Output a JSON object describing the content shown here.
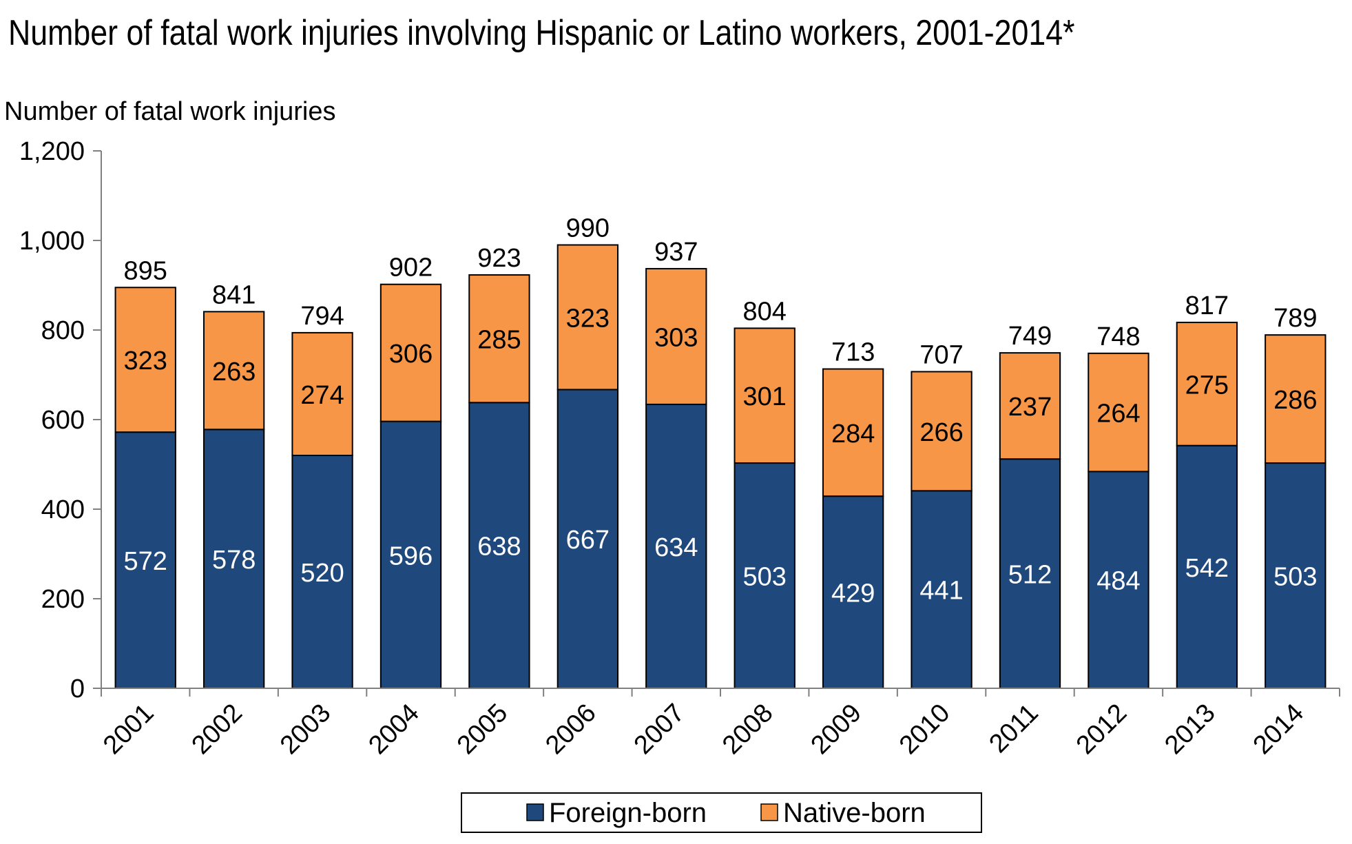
{
  "chart_data": {
    "type": "bar",
    "stacked": true,
    "title": "Number of fatal work injuries involving Hispanic or Latino workers, 2001-2014*",
    "ylabel": "Number of fatal work injuries",
    "xlabel": "",
    "ylim": [
      0,
      1200
    ],
    "yticks": [
      0,
      200,
      400,
      600,
      800,
      1000,
      1200
    ],
    "ytick_labels": [
      "0",
      "200",
      "400",
      "600",
      "800",
      "1,000",
      "1,200"
    ],
    "categories": [
      "2001",
      "2002",
      "2003",
      "2004",
      "2005",
      "2006",
      "2007",
      "2008",
      "2009",
      "2010",
      "2011",
      "2012",
      "2013",
      "2014"
    ],
    "series": [
      {
        "name": "Foreign-born",
        "color": "#1f497d",
        "values": [
          572,
          578,
          520,
          596,
          638,
          667,
          634,
          503,
          429,
          441,
          512,
          484,
          542,
          503
        ]
      },
      {
        "name": "Native-born",
        "color": "#f79646",
        "values": [
          323,
          263,
          274,
          306,
          285,
          323,
          303,
          301,
          284,
          266,
          237,
          264,
          275,
          286
        ]
      }
    ],
    "totals": [
      895,
      841,
      794,
      902,
      923,
      990,
      937,
      804,
      713,
      707,
      749,
      748,
      817,
      789
    ],
    "grid": false,
    "legend_position": "bottom-center"
  }
}
